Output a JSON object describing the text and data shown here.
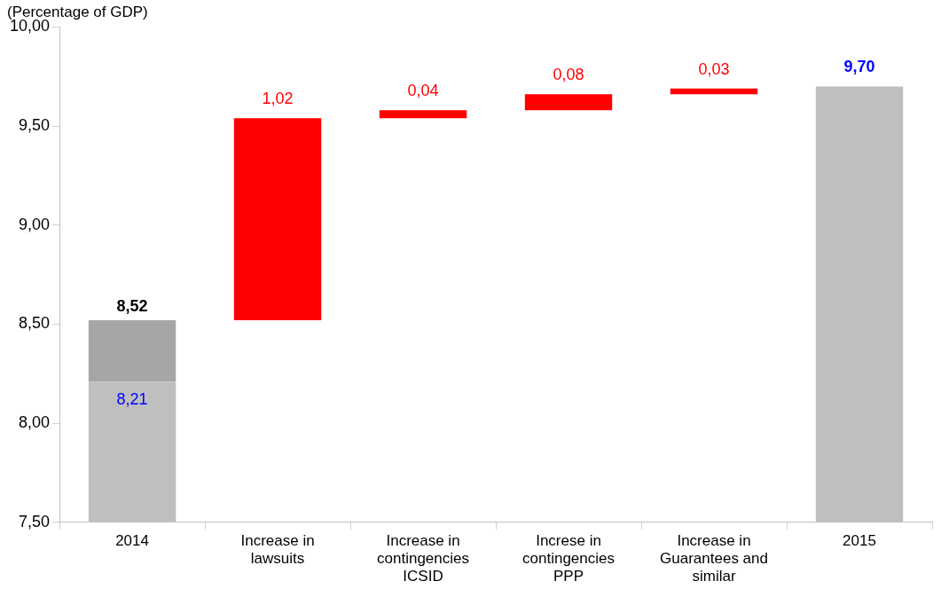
{
  "chart_data": {
    "type": "bar",
    "ylabel": "(Percentage of GDP)",
    "categories": [
      "2014",
      "Increase in lawsuits",
      "Increase in contingencies ICSID",
      "Increse in contingencies PPP",
      "Increase in Guarantees and similar",
      "2015"
    ],
    "series": [
      {
        "color": "#bfbfbf",
        "values": [
          8.21,
          null,
          null,
          null,
          null,
          9.7
        ],
        "value_labels": [
          "8,21",
          null,
          null,
          null,
          null,
          "9,70"
        ]
      },
      {
        "color": "#a6a6a6",
        "values": [
          0.31,
          null,
          null,
          null,
          null,
          null
        ],
        "base": [
          8.21,
          null,
          null,
          null,
          null,
          null
        ]
      },
      {
        "color": "#ff0000",
        "values": [
          null,
          1.02,
          0.04,
          0.08,
          0.03,
          null
        ],
        "base": [
          null,
          8.52,
          9.54,
          9.58,
          9.66,
          null
        ],
        "value_labels": [
          null,
          "1,02",
          "0,04",
          "0,08",
          "0,03",
          null
        ]
      }
    ],
    "totals": [
      "8,52",
      null,
      null,
      null,
      null,
      null
    ],
    "ylim": [
      7.5,
      10
    ],
    "yticks": [
      {
        "value": 7.5,
        "label": "7,50"
      },
      {
        "value": 8,
        "label": "8,00"
      },
      {
        "value": 8.5,
        "label": "8,50"
      },
      {
        "value": 9,
        "label": "9,00"
      },
      {
        "value": 9.5,
        "label": "9,50"
      },
      {
        "value": 10,
        "label": "10,00"
      }
    ],
    "grid": false,
    "legend": false
  }
}
